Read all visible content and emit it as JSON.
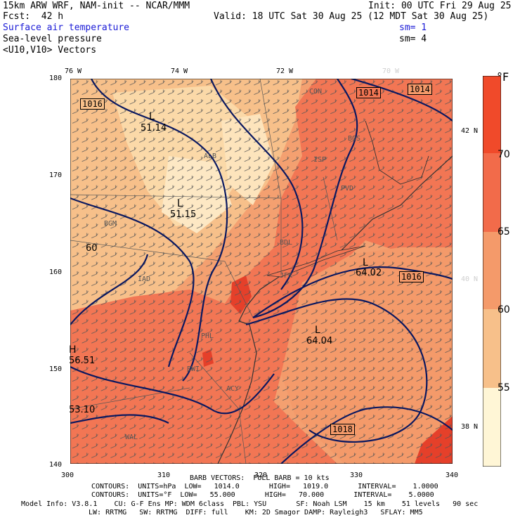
{
  "header": {
    "model": "15km ARW WRF, NAM-init -- NCAR/MMM",
    "init": "Init: 00 UTC Fri 29 Aug 25",
    "fcst": "Fcst:  42 h",
    "valid": "Valid: 18 UTC Sat 30 Aug 25 (12 MDT Sat 30 Aug 25)",
    "field1": "Surface air temperature",
    "sm1": "sm= 1",
    "field2": "Sea-level pressure",
    "sm2": "sm= 4",
    "field3": "<U10,V10> Vectors"
  },
  "axes": {
    "lon_labels": [
      "76 W",
      "74 W",
      "72 W",
      "70 W"
    ],
    "lat_labels": [
      "42 N",
      "40 N",
      "38 N"
    ],
    "y_ticks": [
      "180",
      "170",
      "160",
      "150",
      "140"
    ],
    "x_ticks": [
      "300",
      "310",
      "320",
      "330",
      "340"
    ]
  },
  "colorbar": {
    "unit": "°F",
    "labels": [
      "70",
      "65",
      "60",
      "55"
    ],
    "colors": [
      "#f04a2a",
      "#f26b4a",
      "#f49a6a",
      "#f7c08a",
      "#fbe2b0",
      "#fff6d6"
    ]
  },
  "map_labels": {
    "highs_lows": [
      "L",
      "51.14",
      "L",
      "51.15",
      "L",
      "64.02",
      "L",
      "64.04",
      "H",
      "56.51"
    ],
    "isobars": [
      "1016",
      "1014",
      "1014",
      "1016",
      "1018"
    ],
    "extra_values": [
      "60",
      "53.10"
    ],
    "stations": [
      "CON",
      "BOS",
      "ALB",
      "BGM",
      "PVD",
      "BDL",
      "JFK",
      "PHL",
      "ACY",
      "BWI",
      "WAL",
      "ISP",
      "IAD"
    ]
  },
  "footer": {
    "barb": "BARB VECTORS:  FULL BARB = 10 kts",
    "contours1": "CONTOURS:  UNITS=hPa  LOW=   1014.0       HIGH=   1019.0       INTERVAL=    1.0000",
    "contours2": "CONTOURS:  UNITS=°F  LOW=   55.000       HIGH=   70.000       INTERVAL=    5.0000",
    "model_info": "Model Info: V3.8.1    CU: G-F Ens MP: WDM 6class  PBL: YSU       SF: Noah LSM    15 km    51 levels   90 sec",
    "model_info2": "LW: RRTMG   SW: RRTMG  DIFF: full    KM: 2D Smagor DAMP: Rayleigh3   SFLAY: MM5"
  }
}
